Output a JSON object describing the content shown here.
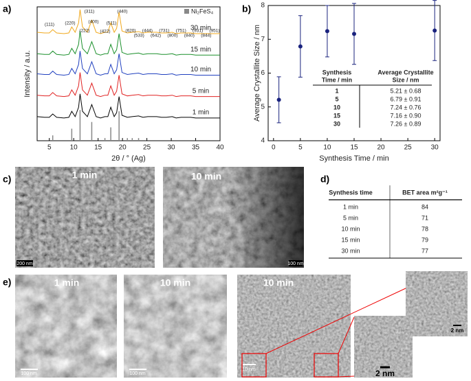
{
  "panel_labels": [
    "a)",
    "b)",
    "c)",
    "d)",
    "e)"
  ],
  "chart_data": [
    {
      "type": "line",
      "x_label": "2θ / ° (Ag)",
      "y_label": "Intensity / a.u.",
      "x": [
        2.5,
        4,
        5,
        5.7,
        6.5,
        8,
        9,
        9.6,
        10.3,
        11.0,
        11.3,
        11.8,
        12.8,
        13.7,
        14.6,
        15.5,
        16.4,
        17.0,
        17.6,
        18.3,
        18.8,
        19.3,
        19.9,
        21,
        22,
        23.3,
        24.2,
        25.2,
        26,
        27,
        28,
        29,
        30.2,
        31,
        32,
        33,
        34,
        35,
        36,
        37,
        38,
        40
      ],
      "series": [
        {
          "name": "1 min",
          "color": "#000000",
          "values": [
            18,
            17.5,
            17.5,
            20,
            17.5,
            17,
            17.5,
            22,
            18,
            25,
            35,
            22,
            18,
            27,
            18,
            17,
            18,
            18,
            25,
            18,
            21,
            33,
            19,
            17.5,
            18,
            18.5,
            17.5,
            18,
            18,
            18,
            17.5,
            17.5,
            18,
            17,
            17.5,
            17.5,
            17.5,
            17,
            17,
            17,
            17,
            17
          ]
        },
        {
          "name": "5 min",
          "color": "#e02020",
          "values": [
            34,
            33.5,
            33.5,
            36,
            33.5,
            33,
            33.5,
            38,
            34,
            41,
            51,
            38,
            34,
            43,
            34,
            33,
            34,
            34,
            41,
            34,
            37,
            49,
            35,
            33.5,
            34,
            34.5,
            33.5,
            34,
            34,
            34,
            33.5,
            33.5,
            34,
            33,
            33.5,
            33.5,
            33.5,
            33,
            33,
            33,
            33,
            33
          ]
        },
        {
          "name": "10 min",
          "color": "#1f3fbf",
          "values": [
            50,
            49.5,
            49.5,
            52,
            49.5,
            49,
            49.5,
            54,
            50,
            57,
            67,
            54,
            50,
            59,
            50,
            49,
            50,
            50,
            57,
            50,
            53,
            65,
            51,
            49.5,
            50,
            50.5,
            49.5,
            50,
            50,
            50,
            49.5,
            49.5,
            50,
            49,
            49.5,
            49.5,
            49.5,
            49,
            49,
            49,
            49,
            49
          ]
        },
        {
          "name": "15 min",
          "color": "#1a8f2a",
          "values": [
            65,
            64.5,
            64.5,
            67,
            64.5,
            64,
            64.5,
            69,
            65,
            72,
            82,
            69,
            65,
            74,
            65,
            64,
            65,
            65,
            72,
            65,
            68,
            80,
            66,
            64.5,
            65,
            65.5,
            64.5,
            65,
            65,
            65,
            64.5,
            64.5,
            65,
            64,
            64.5,
            64.5,
            64.5,
            64,
            64,
            64,
            64,
            64
          ]
        },
        {
          "name": "30 min",
          "color": "#f0a81c",
          "values": [
            81,
            80.5,
            80.5,
            83,
            80.5,
            80,
            80.5,
            85,
            81,
            88,
            98,
            85,
            81,
            90,
            81,
            80,
            81,
            81,
            88,
            81,
            84,
            96,
            82,
            80.5,
            81,
            81.5,
            80.5,
            81,
            81,
            81,
            80.5,
            80.5,
            81,
            80,
            80.5,
            80.5,
            80.5,
            80,
            80,
            80,
            80,
            80
          ]
        }
      ],
      "reference": {
        "name": "Ni₂FeS₄",
        "color": "#888888",
        "x": [
          5.7,
          9.6,
          11.3,
          13.7,
          16.4,
          17.6,
          19.3,
          21,
          22,
          23.3
        ],
        "values": [
          4,
          9,
          23,
          14,
          2,
          10,
          22,
          2,
          2,
          2
        ]
      },
      "peak_labels": [
        "(111)",
        "(220)",
        "(311)",
        "(222)",
        "(400)",
        "(422)",
        "(511)",
        "(440)",
        "(620)",
        "(533)",
        "(444)",
        "(642)",
        "(731)",
        "(800)",
        "(751)",
        "(840)",
        "(931)",
        "(844)",
        "(951)"
      ],
      "xlim": [
        2.5,
        40
      ],
      "ylim": [
        0,
        100
      ],
      "xticks": [
        5,
        10,
        15,
        20,
        25,
        30,
        35,
        40
      ],
      "legend": "upper right"
    },
    {
      "type": "scatter",
      "x_label": "Synthesis Time / min",
      "y_label": "Average Crystallite Size / nm",
      "x": [
        1,
        5,
        10,
        15,
        30
      ],
      "values": [
        5.21,
        6.79,
        7.24,
        7.16,
        7.26
      ],
      "errors": [
        0.68,
        0.91,
        0.76,
        0.9,
        0.89
      ],
      "color": "#1a237e",
      "xlim": [
        -1,
        31
      ],
      "ylim": [
        4,
        8
      ],
      "xticks": [
        0,
        5,
        10,
        15,
        20,
        25,
        30
      ],
      "yticks": [
        4,
        5,
        6,
        7,
        8
      ],
      "table": {
        "header": [
          [
            "Synthesis",
            "Time / min"
          ],
          [
            "Average Crystallite",
            "Size / nm"
          ]
        ],
        "rows": [
          [
            1,
            "5.21 ± 0.68"
          ],
          [
            5,
            "6.79 ± 0.91"
          ],
          [
            10,
            "7.24 ± 0.76"
          ],
          [
            15,
            "7.16 ± 0.90"
          ],
          [
            30,
            "7.26 ± 0.89"
          ]
        ]
      }
    }
  ],
  "sem": {
    "labels": [
      "1 min",
      "10 min"
    ],
    "scale_bars": [
      "200 nm",
      "100 nm"
    ]
  },
  "bet_table": {
    "header": [
      "Synthesis time",
      "BET area m²g⁻¹"
    ],
    "rows": [
      [
        "1 min",
        84
      ],
      [
        "5 min",
        71
      ],
      [
        "10 min",
        78
      ],
      [
        "15 min",
        79
      ],
      [
        "30 min",
        77
      ]
    ]
  },
  "tem": {
    "labels": [
      "1 min",
      "10 min",
      "10 min"
    ],
    "scale_bars": [
      "100 nm",
      "100 nm",
      "10 nm",
      "2 nm",
      "2 nm"
    ]
  }
}
